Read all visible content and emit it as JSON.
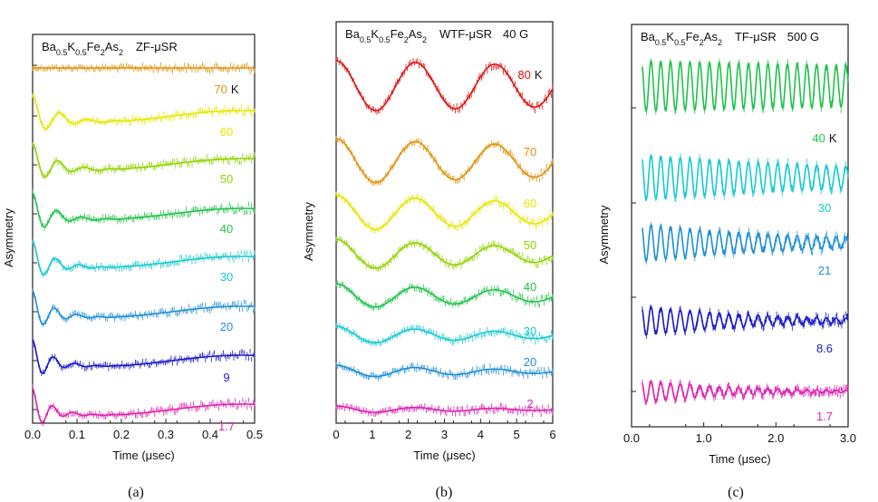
{
  "chart_data": [
    {
      "type": "line",
      "panel_label": "(a)",
      "sample": "Ba0.5K0.5Fe2As2",
      "method": "ZF-μSR",
      "field": "",
      "xlabel": "Time (μsec)",
      "ylabel": "Asymmetry",
      "xlim": [
        0,
        0.5
      ],
      "xticks": [
        "0.0",
        "0.1",
        "0.2",
        "0.3",
        "0.4",
        "0.5"
      ],
      "grid": false,
      "series": [
        {
          "name": "70 K",
          "label": "70",
          "unit": "K",
          "color": "#e0920c"
        },
        {
          "name": "60",
          "label": "60",
          "color": "#e6e600"
        },
        {
          "name": "50",
          "label": "50",
          "color": "#8fd400"
        },
        {
          "name": "40",
          "label": "40",
          "color": "#1fc24a"
        },
        {
          "name": "30",
          "label": "30",
          "color": "#17c9d1"
        },
        {
          "name": "20",
          "label": "20",
          "color": "#1f8fd6"
        },
        {
          "name": "9",
          "label": "9",
          "color": "#1a1ac8"
        },
        {
          "name": "1.7",
          "label": "1.7",
          "color": "#e020b0"
        }
      ]
    },
    {
      "type": "line",
      "panel_label": "(b)",
      "sample": "Ba0.5K0.5Fe2As2",
      "method": "WTF-μSR",
      "field": "40 G",
      "xlabel": "Time (μsec)",
      "ylabel": "Asymmetry",
      "xlim": [
        0,
        6
      ],
      "xticks": [
        "0",
        "1",
        "2",
        "3",
        "4",
        "5",
        "6"
      ],
      "grid": false,
      "series": [
        {
          "name": "80 K",
          "label": "80",
          "unit": "K",
          "color": "#e01010"
        },
        {
          "name": "70",
          "label": "70",
          "color": "#e0920c"
        },
        {
          "name": "60",
          "label": "60",
          "color": "#e6e600"
        },
        {
          "name": "50",
          "label": "50",
          "color": "#8fd400"
        },
        {
          "name": "40",
          "label": "40",
          "color": "#1fc24a"
        },
        {
          "name": "30",
          "label": "30",
          "color": "#17c9d1"
        },
        {
          "name": "20",
          "label": "20",
          "color": "#1f8fd6"
        },
        {
          "name": "2",
          "label": "2",
          "color": "#e020b0"
        }
      ]
    },
    {
      "type": "line",
      "panel_label": "(c)",
      "sample": "Ba0.5K0.5Fe2As2",
      "method": "TF-μSR",
      "field": "500 G",
      "xlabel": "Time (μsec)",
      "ylabel": "Asymmetry",
      "xlim": [
        0,
        3.0
      ],
      "xticks": [
        "0.0",
        "1.0",
        "2.0",
        "3.0"
      ],
      "grid": false,
      "series": [
        {
          "name": "40 K",
          "label": "40",
          "unit": "K",
          "color": "#1fc24a"
        },
        {
          "name": "30",
          "label": "30",
          "color": "#17c9d1"
        },
        {
          "name": "21",
          "label": "21",
          "color": "#1f8fd6"
        },
        {
          "name": "8.6",
          "label": "8.6",
          "color": "#1a1ac8"
        },
        {
          "name": "1.7",
          "label": "1.7",
          "color": "#e020b0"
        }
      ]
    }
  ]
}
